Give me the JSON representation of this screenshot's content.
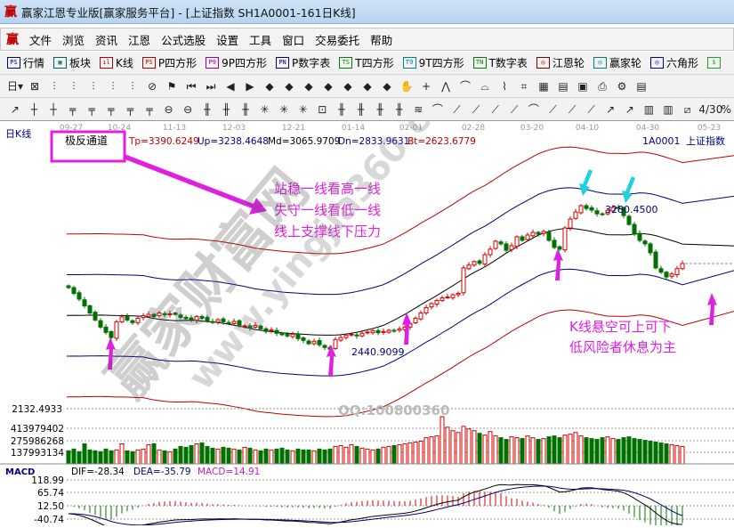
{
  "window": {
    "title": "赢家江恩专业版[赢家服务平台] - [上证指数  SH1A0001-161日K线]",
    "logo": "赢"
  },
  "menu": [
    "文件",
    "浏览",
    "资讯",
    "江恩",
    "公式选股",
    "设置",
    "工具",
    "窗口",
    "交易委托",
    "帮助"
  ],
  "toolbar1": [
    {
      "icon": "PS",
      "label": "行情",
      "icon_name": "quote-table-icon"
    },
    {
      "icon": "▦",
      "label": "板块",
      "icon_name": "sector-icon"
    },
    {
      "icon": "ıl",
      "label": "K线",
      "icon_name": "kline-icon"
    },
    {
      "icon": "PS",
      "label": "P四方形"
    },
    {
      "icon": "P9",
      "label": "9P四方形"
    },
    {
      "icon": "PN",
      "label": "P数字表"
    },
    {
      "icon": "TS",
      "label": "T四方形"
    },
    {
      "icon": "T9",
      "label": "9T四方形"
    },
    {
      "icon": "TN",
      "label": "T数字表"
    },
    {
      "icon": "◎",
      "label": "江恩轮"
    },
    {
      "icon": "◎",
      "label": "赢家轮"
    },
    {
      "icon": "◎",
      "label": "六角形"
    },
    {
      "icon": "$",
      "label": ""
    }
  ],
  "toolbar2": [
    "日▾",
    "⊠",
    "⫶",
    "⫶",
    "⫶",
    "⫶",
    "⫶",
    "⊘",
    "⚑",
    "⏮",
    "⏭",
    "◀",
    "▶",
    "◆",
    "◆",
    "◆",
    "◆",
    "◆",
    "◆",
    "◆",
    "✋",
    "+",
    "⋀",
    "⌒",
    "⌓",
    "⌇",
    "⌗",
    "▦",
    "▤",
    "▣",
    "⎙",
    "⚙",
    "▤"
  ],
  "toolbar3": [
    "↗",
    "┼",
    "┼",
    "╤",
    "╤",
    "╤",
    "╤",
    "╤",
    "⊖",
    "⊖",
    "╫",
    "╫",
    "╫",
    "✳",
    "✳",
    "✳",
    "⊡",
    "╫",
    "╫",
    "╫",
    "╫",
    "≋",
    "⌒",
    "⟋",
    "⟋",
    "⟋",
    "⟋",
    "⌒",
    "⟋",
    "⟋",
    "⟋",
    "↗",
    "↗",
    "▥",
    "▥",
    "⧄",
    "4/30",
    "%"
  ],
  "chart": {
    "period_label": "日K线",
    "indicator_name": "极反通道",
    "values": {
      "tp": "Tp=3390.6249",
      "up": "Up=3238.4648",
      "md": "Md=3065.9709",
      "dn": "Dn=2833.9631",
      "bt": "Bt=2623.6779"
    },
    "code": "1A0001",
    "name": "上证指数",
    "low_label": "2440.9099",
    "high_label": "3280.4500",
    "price_axis_bottom": "2132.4933",
    "volume_axis": [
      "413979402",
      "275986268",
      "137993134"
    ],
    "macd": {
      "title": "MACD",
      "dif": "DIF=-28.34",
      "dea": "DEA=-35.79",
      "macd": "MACD=14.91",
      "axis": [
        "118.99",
        "65.74",
        "12.50",
        "-40.74"
      ]
    },
    "annotations": {
      "note1": [
        "站稳一线看高一线",
        "失守一线看低一线",
        "线上支撑线下压力"
      ],
      "note2": [
        "K线悬空可上可下",
        "低风险者休息为主"
      ],
      "watermark_cn": "赢家财富网",
      "watermark_url": "www.yingjia360.com",
      "qq": "QQ:100800360"
    },
    "colors": {
      "up": "#d00000",
      "down": "#007000",
      "annotation": "#e020e0",
      "arrow_cyan": "#20d0e0",
      "band_outer": "#c00000",
      "band_mid": "#000080"
    }
  },
  "chart_data": {
    "type": "candlestick",
    "dates": [
      "09-27",
      "10-24",
      "11-13",
      "12-03",
      "12-21",
      "01-14",
      "02-01",
      "02-28",
      "03-20",
      "04-10",
      "04-30",
      "05-23"
    ],
    "close": [
      2793,
      2760,
      2728,
      2690,
      2650,
      2610,
      2570,
      2540,
      2511,
      2600,
      2627,
      2610,
      2595,
      2620,
      2635,
      2642,
      2630,
      2650,
      2640,
      2645,
      2642,
      2625,
      2618,
      2612,
      2630,
      2620,
      2605,
      2598,
      2612,
      2600,
      2590,
      2602,
      2580,
      2577,
      2565,
      2580,
      2560,
      2545,
      2555,
      2535,
      2527,
      2520,
      2530,
      2505,
      2495,
      2476,
      2490,
      2470,
      2455,
      2445,
      2500,
      2511,
      2525,
      2530,
      2520,
      2535,
      2542,
      2550,
      2538,
      2545,
      2552,
      2548,
      2560,
      2570,
      2590,
      2620,
      2650,
      2680,
      2703,
      2720,
      2735,
      2740,
      2753,
      2760,
      2904,
      2920,
      2940,
      2930,
      2979,
      3010,
      3055,
      3040,
      3004,
      3030,
      3080,
      3060,
      3090,
      3105,
      3095,
      3110,
      3060,
      3020,
      3010,
      3130,
      3180,
      3220,
      3256,
      3240,
      3231,
      3210,
      3206,
      3230,
      3246,
      3240,
      3200,
      3150,
      3095,
      3060,
      3040,
      2990,
      2904,
      2880,
      2853,
      2870,
      2900,
      2929
    ],
    "volume": [
      150,
      170,
      140,
      230,
      160,
      150,
      140,
      170,
      150,
      160,
      230,
      150,
      140,
      160,
      170,
      220,
      230,
      160,
      150,
      140,
      170,
      200,
      190,
      210,
      230,
      240,
      200,
      180,
      170,
      190,
      180,
      170,
      160,
      190,
      180,
      160,
      150,
      170,
      160,
      170,
      180,
      160,
      150,
      170,
      160,
      160,
      150,
      170,
      160,
      170,
      200,
      210,
      190,
      220,
      200,
      180,
      170,
      160,
      170,
      190,
      200,
      210,
      220,
      230,
      240,
      250,
      260,
      300,
      310,
      320,
      540,
      420,
      380,
      360,
      430,
      400,
      380,
      350,
      330,
      370,
      320,
      300,
      280,
      310,
      300,
      290,
      320,
      300,
      280,
      290,
      310,
      320,
      300,
      330,
      340,
      360,
      320,
      300,
      290,
      280,
      300,
      310,
      290,
      280,
      300,
      310,
      290,
      280,
      270,
      260,
      250,
      240,
      230,
      220,
      210,
      200
    ]
  }
}
